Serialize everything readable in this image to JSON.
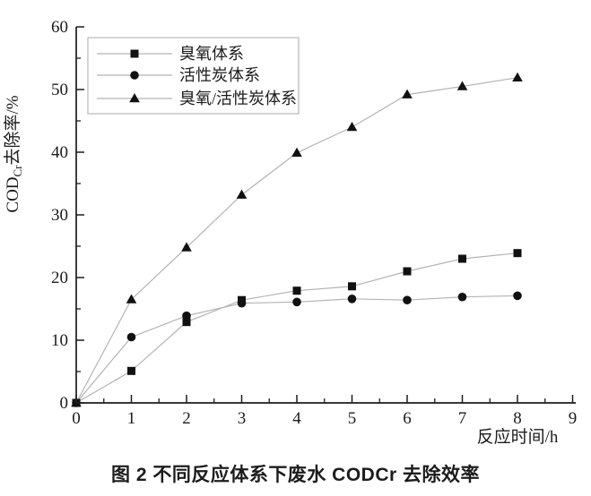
{
  "figure": {
    "caption": "图 2 不同反应体系下废水 CODCr 去除效率"
  },
  "chart_data": {
    "type": "line",
    "title": "",
    "xlabel": "反应时间/h",
    "ylabel": "CODCr去除率/%",
    "ylabel_parts": {
      "prefix": "COD",
      "subscript": "Cr",
      "suffix": "去除率/%"
    },
    "xlim": [
      0,
      9
    ],
    "ylim": [
      0,
      60
    ],
    "x_major_ticks": [
      0,
      1,
      2,
      3,
      4,
      5,
      6,
      7,
      8,
      9
    ],
    "y_major_ticks": [
      0,
      10,
      20,
      30,
      40,
      50,
      60
    ],
    "x_minor_step": 0.5,
    "y_minor_step": 5,
    "grid": false,
    "legend_position": "upper-left",
    "x": [
      0,
      1,
      2,
      3,
      4,
      5,
      6,
      7,
      8
    ],
    "series": [
      {
        "name": "臭氧体系",
        "marker": "square",
        "values": [
          0,
          5.1,
          12.9,
          16.4,
          17.9,
          18.6,
          21.0,
          23.0,
          23.9
        ]
      },
      {
        "name": "活性炭体系",
        "marker": "circle",
        "values": [
          0,
          10.5,
          13.9,
          15.9,
          16.1,
          16.6,
          16.4,
          16.9,
          17.1
        ]
      },
      {
        "name": "臭氧/活性炭体系",
        "marker": "triangle",
        "values": [
          0,
          16.5,
          24.8,
          33.2,
          39.9,
          44.0,
          49.2,
          50.5,
          51.9
        ]
      }
    ],
    "colors": {
      "line": "#b3b3b3",
      "marker": "#111111",
      "axis": "#1c1c1c",
      "text": "#1c1c1c",
      "legend_border": "#a9a9a9",
      "background": "#ffffff"
    }
  }
}
